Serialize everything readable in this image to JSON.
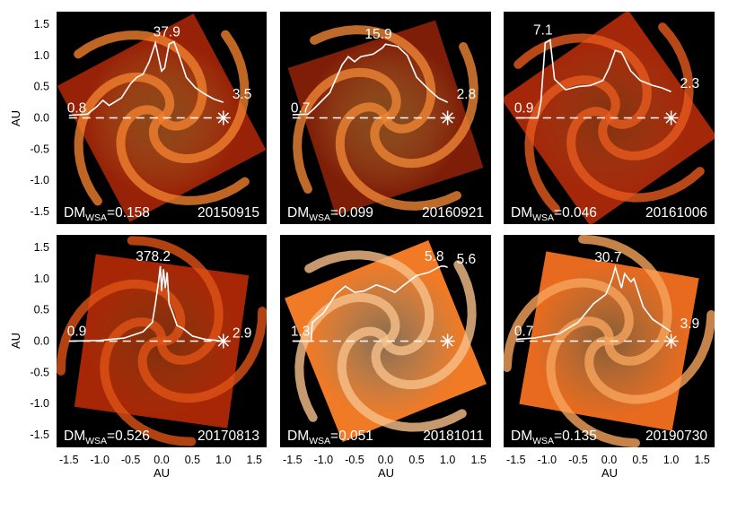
{
  "axes": {
    "xlabel": "AU",
    "ylabel": "AU",
    "xticks": [
      "-1.5",
      "-1.0",
      "-0.5",
      "0.0",
      "0.5",
      "1.0",
      "1.5"
    ],
    "yticks": [
      "1.5",
      "1.0",
      "0.5",
      "0.0",
      "-0.5",
      "-1.0",
      "-1.5"
    ]
  },
  "chart_data": [
    {
      "type": "line",
      "date": "20150915",
      "dm_label": "DM",
      "dm_sub": "WSA",
      "dm_value": "=0.158",
      "labels": {
        "start": "0.8",
        "peak": "37.9",
        "end": "3.5"
      },
      "xlim": [
        -1.7,
        1.7
      ],
      "ylim": [
        -1.7,
        1.7
      ],
      "series": [
        {
          "x": [
            -1.5,
            -1.2,
            -1.05,
            -0.95,
            -0.85,
            -0.65,
            -0.5,
            -0.4,
            -0.3,
            -0.2,
            -0.1,
            0.0,
            0.05,
            0.12,
            0.2,
            0.3,
            0.4,
            0.55,
            0.7,
            0.85,
            1.0
          ],
          "y": [
            0.04,
            0.06,
            0.18,
            0.28,
            0.2,
            0.32,
            0.55,
            0.65,
            0.7,
            0.9,
            1.2,
            0.75,
            0.8,
            1.18,
            1.22,
            0.95,
            0.65,
            0.48,
            0.38,
            0.3,
            0.25
          ]
        }
      ],
      "theme": {
        "bg": "#982207",
        "arm": "#f0802e"
      }
    },
    {
      "type": "line",
      "date": "20160921",
      "dm_label": "DM",
      "dm_sub": "WSA",
      "dm_value": "=0.099",
      "labels": {
        "start": "0.7",
        "peak": "15.9",
        "end": "2.8"
      },
      "xlim": [
        -1.7,
        1.7
      ],
      "ylim": [
        -1.7,
        1.7
      ],
      "series": [
        {
          "x": [
            -1.5,
            -1.25,
            -1.15,
            -0.9,
            -0.7,
            -0.6,
            -0.5,
            -0.4,
            -0.2,
            -0.05,
            0.0,
            0.1,
            0.2,
            0.35,
            0.5,
            0.7,
            0.85,
            1.0
          ],
          "y": [
            0.05,
            0.06,
            0.15,
            0.4,
            0.85,
            0.98,
            0.9,
            0.98,
            1.02,
            1.12,
            1.18,
            1.16,
            1.14,
            1.0,
            0.65,
            0.45,
            0.32,
            0.25
          ]
        }
      ],
      "theme": {
        "bg": "#7e1e08",
        "arm": "#ec8535"
      }
    },
    {
      "type": "line",
      "date": "20161006",
      "dm_label": "DM",
      "dm_sub": "WSA",
      "dm_value": "=0.046",
      "labels": {
        "start": "0.9",
        "peak": "7.1",
        "end": "2.3"
      },
      "xlim": [
        -1.7,
        1.7
      ],
      "ylim": [
        -1.7,
        1.7
      ],
      "series": [
        {
          "x": [
            -1.5,
            -1.15,
            -1.1,
            -1.03,
            -0.95,
            -0.88,
            -0.7,
            -0.5,
            -0.3,
            -0.1,
            0.0,
            0.1,
            0.2,
            0.35,
            0.5,
            0.7,
            0.85,
            1.0
          ],
          "y": [
            0.0,
            0.0,
            0.25,
            1.2,
            1.25,
            0.62,
            0.45,
            0.5,
            0.52,
            0.6,
            0.8,
            1.08,
            1.05,
            0.75,
            0.6,
            0.52,
            0.48,
            0.42
          ]
        }
      ],
      "theme": {
        "bg": "#a4270a",
        "arm": "#e65a1e"
      }
    },
    {
      "type": "line",
      "date": "20170813",
      "dm_label": "DM",
      "dm_sub": "WSA",
      "dm_value": "=0.526",
      "labels": {
        "start": "0.9",
        "peak": "378.2",
        "end": "2.9"
      },
      "xlim": [
        -1.7,
        1.7
      ],
      "ylim": [
        -1.7,
        1.7
      ],
      "series": [
        {
          "x": [
            -1.5,
            -1.0,
            -0.6,
            -0.3,
            -0.15,
            -0.1,
            -0.05,
            -0.02,
            0.0,
            0.03,
            0.06,
            0.09,
            0.12,
            0.18,
            0.25,
            0.35,
            0.5,
            0.7,
            0.9,
            1.0
          ],
          "y": [
            0.0,
            0.01,
            0.05,
            0.15,
            0.3,
            0.6,
            0.95,
            1.2,
            0.8,
            1.15,
            0.85,
            1.1,
            0.6,
            0.45,
            0.25,
            0.2,
            0.08,
            0.03,
            0.01,
            0.0
          ]
        }
      ],
      "theme": {
        "bg": "#a72606",
        "arm": "#de5215"
      }
    },
    {
      "type": "line",
      "date": "20181011",
      "dm_label": "DM",
      "dm_sub": "WSA",
      "dm_value": "=0.051",
      "labels": {
        "start": "1.3",
        "peak": "5.8",
        "end": "5.6"
      },
      "xlim": [
        -1.7,
        1.7
      ],
      "ylim": [
        -1.7,
        1.7
      ],
      "series": [
        {
          "x": [
            -1.5,
            -1.2,
            -1.18,
            -1.0,
            -0.8,
            -0.65,
            -0.5,
            -0.35,
            -0.15,
            0.0,
            0.15,
            0.3,
            0.5,
            0.7,
            0.85,
            0.9,
            0.95,
            1.0
          ],
          "y": [
            0.0,
            0.0,
            0.3,
            0.45,
            0.75,
            0.88,
            0.78,
            0.8,
            0.9,
            0.85,
            0.78,
            0.9,
            1.05,
            1.1,
            1.18,
            1.2,
            1.2,
            1.18
          ]
        }
      ],
      "theme": {
        "bg": "#f07a25",
        "arm": "#f8c08a"
      }
    },
    {
      "type": "line",
      "date": "20190730",
      "dm_label": "DM",
      "dm_sub": "WSA",
      "dm_value": "=0.135",
      "labels": {
        "start": "0.7",
        "peak": "30.7",
        "end": "3.9"
      },
      "xlim": [
        -1.7,
        1.7
      ],
      "ylim": [
        -1.7,
        1.7
      ],
      "series": [
        {
          "x": [
            -1.5,
            -1.2,
            -0.8,
            -0.5,
            -0.25,
            -0.05,
            0.05,
            0.1,
            0.2,
            0.25,
            0.35,
            0.4,
            0.45,
            0.55,
            0.7,
            0.85,
            1.0
          ],
          "y": [
            0.03,
            0.05,
            0.12,
            0.3,
            0.6,
            0.75,
            1.0,
            1.18,
            0.85,
            1.08,
            0.95,
            1.0,
            0.85,
            0.55,
            0.35,
            0.25,
            0.15
          ]
        }
      ],
      "theme": {
        "bg": "#e86a1e",
        "arm": "#f6a45c"
      }
    }
  ]
}
